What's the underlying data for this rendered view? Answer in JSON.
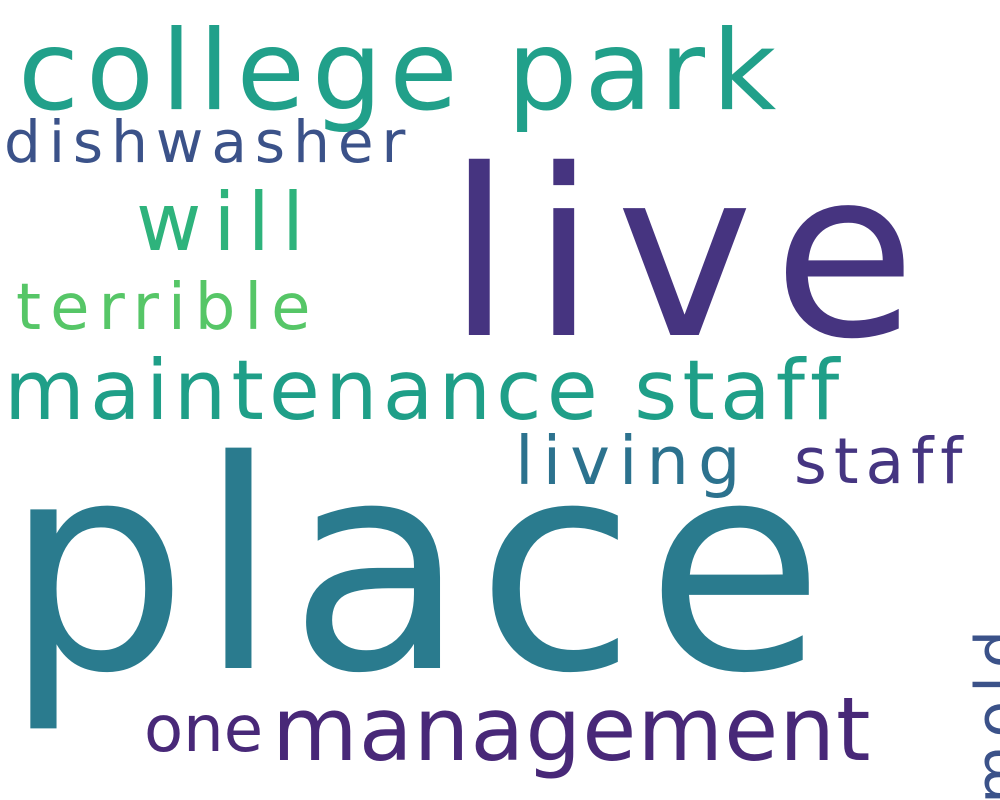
{
  "words": [
    {
      "key": "place",
      "text": "place",
      "color": "#2a7b8e"
    },
    {
      "key": "live",
      "text": "live",
      "color": "#463480"
    },
    {
      "key": "college_park",
      "text": "college park",
      "color": "#21a08a"
    },
    {
      "key": "maintenance_staff",
      "text": "maintenance staff",
      "color": "#1f9f88"
    },
    {
      "key": "management",
      "text": "management",
      "color": "#482878"
    },
    {
      "key": "dishwasher",
      "text": "dishwasher",
      "color": "#3b5289"
    },
    {
      "key": "will",
      "text": "will",
      "color": "#2eb37c"
    },
    {
      "key": "terrible",
      "text": "terrible",
      "color": "#56c667"
    },
    {
      "key": "living",
      "text": "living",
      "color": "#2c728e"
    },
    {
      "key": "staff",
      "text": "staff",
      "color": "#453581"
    },
    {
      "key": "one",
      "text": "one",
      "color": "#482878"
    },
    {
      "key": "mold",
      "text": "mold",
      "color": "#3b5289"
    }
  ]
}
